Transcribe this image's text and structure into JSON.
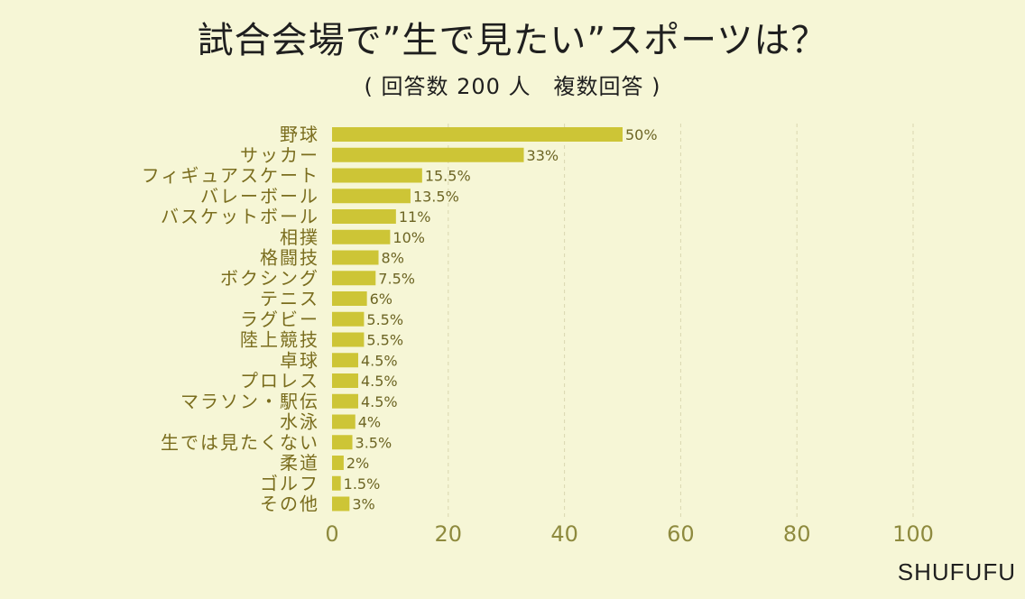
{
  "header": {
    "title": "試合会場で”生で見たい”スポーツは？",
    "subtitle": "( 回答数 200 人　複数回答 )"
  },
  "footer": {
    "brand": "SHUFUFU"
  },
  "colors": {
    "background": "#f6f6d6",
    "bar": "#cdc536",
    "category_text": "#7a6d1e",
    "axis_text": "#8e8a3e",
    "value_text": "#6d6524",
    "grid": "#d9d7b0"
  },
  "chart_data": {
    "type": "bar",
    "orientation": "horizontal",
    "categories": [
      "野球",
      "サッカー",
      "フィギュアスケート",
      "バレーボール",
      "バスケットボール",
      "相撲",
      "格闘技",
      "ボクシング",
      "テニス",
      "ラグビー",
      "陸上競技",
      "卓球",
      "プロレス",
      "マラソン・駅伝",
      "水泳",
      "生では見たくない",
      "柔道",
      "ゴルフ",
      "その他"
    ],
    "values": [
      50,
      33,
      15.5,
      13.5,
      11,
      10,
      8,
      7.5,
      6,
      5.5,
      5.5,
      4.5,
      4.5,
      4.5,
      4,
      3.5,
      2,
      1.5,
      3
    ],
    "value_labels": [
      "50%",
      "33%",
      "15.5%",
      "13.5%",
      "11%",
      "10%",
      "8%",
      "7.5%",
      "6%",
      "5.5%",
      "5.5%",
      "4.5%",
      "4.5%",
      "4.5%",
      "4%",
      "3.5%",
      "2%",
      "1.5%",
      "3%"
    ],
    "xlim": [
      0,
      100
    ],
    "xticks": [
      0,
      20,
      40,
      60,
      80,
      100
    ],
    "grid": "vertical dashed",
    "unit": "%"
  }
}
